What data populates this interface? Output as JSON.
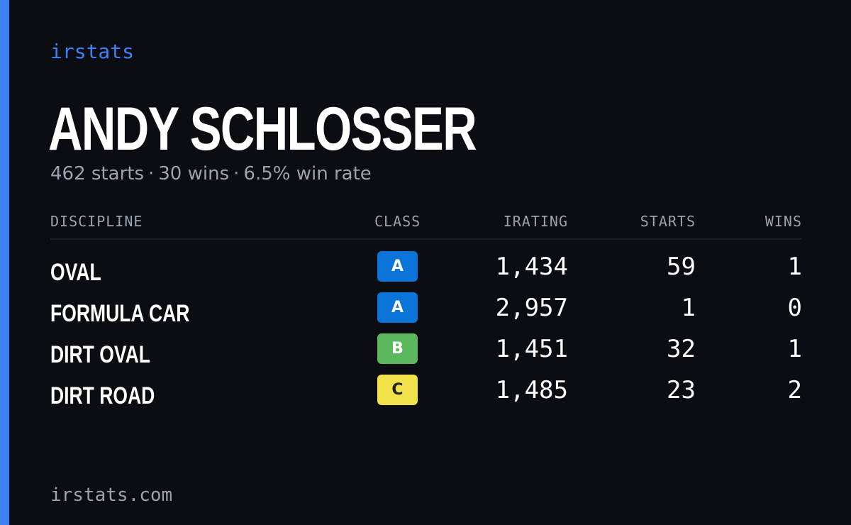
{
  "brand": "irstats",
  "player": {
    "name": "ANDY SCHLOSSER",
    "starts_text": "462 starts",
    "wins_text": "30 wins",
    "win_rate_text": "6.5% win rate",
    "separator": "·"
  },
  "table": {
    "headers": {
      "discipline": "DISCIPLINE",
      "class": "CLASS",
      "irating": "IRATING",
      "starts": "STARTS",
      "wins": "WINS"
    },
    "rows": [
      {
        "discipline": "OVAL",
        "class": "A",
        "irating": "1,434",
        "starts": "59",
        "wins": "1"
      },
      {
        "discipline": "FORMULA CAR",
        "class": "A",
        "irating": "2,957",
        "starts": "1",
        "wins": "0"
      },
      {
        "discipline": "DIRT OVAL",
        "class": "B",
        "irating": "1,451",
        "starts": "32",
        "wins": "1"
      },
      {
        "discipline": "DIRT ROAD",
        "class": "C",
        "irating": "1,485",
        "starts": "23",
        "wins": "2"
      }
    ]
  },
  "class_colors": {
    "A": {
      "bg": "#0a74d9",
      "fg": "#ffffff"
    },
    "B": {
      "bg": "#5cb85c",
      "fg": "#ffffff"
    },
    "C": {
      "bg": "#f2e24a",
      "fg": "#222222"
    }
  },
  "colors": {
    "background": "#0b0d13",
    "accent": "#3b82f6",
    "muted_text": "#9ca3af",
    "primary_text": "#ffffff"
  },
  "footer": {
    "url": "irstats.com"
  }
}
